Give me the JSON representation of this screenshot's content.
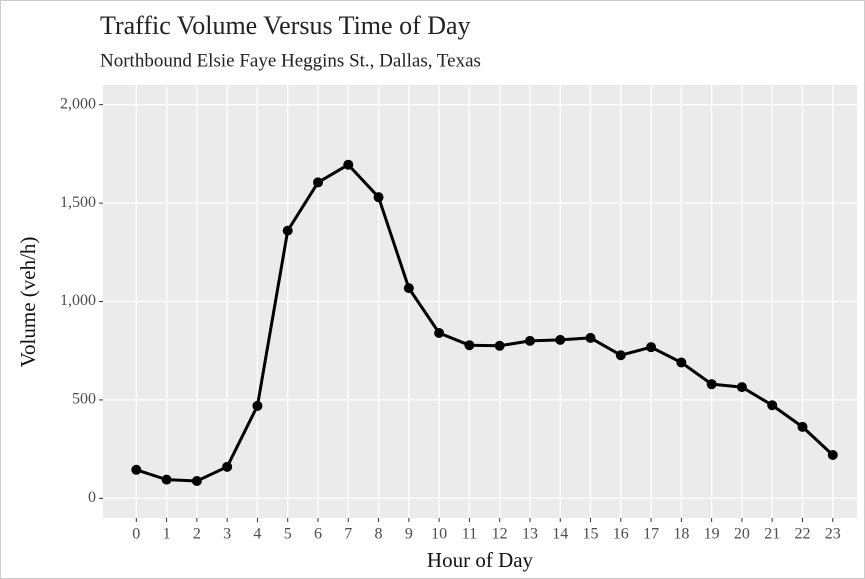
{
  "chart_data": {
    "type": "line",
    "title": "Traffic Volume Versus Time of Day",
    "subtitle": "Northbound Elsie Faye Heggins St., Dallas, Texas",
    "x_label": "Hour of Day",
    "y_label": "Volume (veh/h)",
    "x": [
      0,
      1,
      2,
      3,
      4,
      5,
      6,
      7,
      8,
      9,
      10,
      11,
      12,
      13,
      14,
      15,
      16,
      17,
      18,
      19,
      20,
      21,
      22,
      23
    ],
    "series": [
      {
        "color": "#000000",
        "values": [
          145,
          95,
          88,
          160,
          470,
          1360,
          1605,
          1695,
          1530,
          1068,
          840,
          778,
          775,
          800,
          805,
          815,
          727,
          768,
          690,
          580,
          565,
          473,
          363,
          220
        ]
      }
    ],
    "xlim": [
      -1.1,
      23.8
    ],
    "xticks": [
      0,
      1,
      2,
      3,
      4,
      5,
      6,
      7,
      8,
      9,
      10,
      11,
      12,
      13,
      14,
      15,
      16,
      17,
      18,
      19,
      20,
      21,
      22,
      23
    ],
    "ylim": [
      -100,
      2100
    ],
    "yticks": [
      0,
      500,
      {
        "value": 1000,
        "label": "1,000"
      },
      {
        "value": 1500,
        "label": "1,500"
      },
      {
        "value": 2000,
        "label": "2,000"
      }
    ],
    "grid": true
  }
}
